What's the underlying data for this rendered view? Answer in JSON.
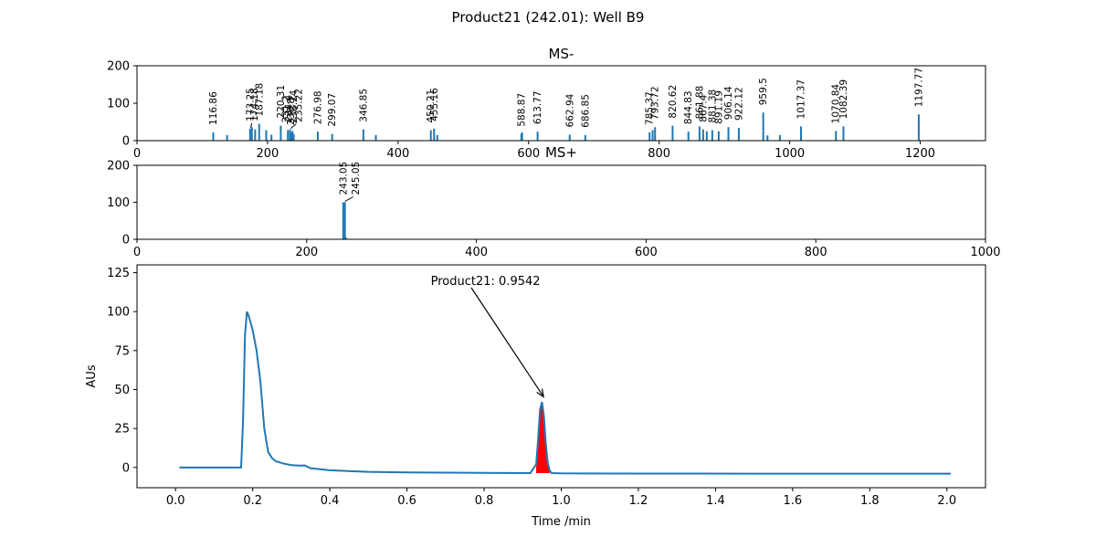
{
  "figure": {
    "title": "Product21 (242.01): Well B9"
  },
  "colors": {
    "bar": "#1f77b4",
    "line": "#1f77b4",
    "peak_fill": "#ff0000",
    "axis": "#000000"
  },
  "chart_data": [
    {
      "id": "ms-neg",
      "type": "bar",
      "title": "MS-",
      "xlim": [
        0,
        1300
      ],
      "ylim": [
        0,
        200
      ],
      "xticks": [
        0,
        200,
        400,
        600,
        800,
        1000,
        1200
      ],
      "yticks": [
        0,
        100,
        200
      ],
      "bars": [
        [
          116.86,
          22
        ],
        [
          138,
          15
        ],
        [
          173.25,
          32
        ],
        [
          176,
          36
        ],
        [
          181,
          30
        ],
        [
          187.18,
          45
        ],
        [
          198,
          28
        ],
        [
          206,
          16
        ],
        [
          220.31,
          40
        ],
        [
          231.2,
          28
        ],
        [
          234.4,
          30
        ],
        [
          236.8,
          22
        ],
        [
          238.2,
          26
        ],
        [
          240,
          18
        ],
        [
          276.98,
          24
        ],
        [
          299.07,
          18
        ],
        [
          346.85,
          30
        ],
        [
          366,
          15
        ],
        [
          450.21,
          28
        ],
        [
          455.16,
          32
        ],
        [
          460,
          15
        ],
        [
          588.87,
          18
        ],
        [
          590,
          22
        ],
        [
          613.77,
          24
        ],
        [
          662.94,
          16
        ],
        [
          686.85,
          15
        ],
        [
          785.37,
          22
        ],
        [
          790,
          28
        ],
        [
          793.72,
          36
        ],
        [
          820.62,
          40
        ],
        [
          844.83,
          24
        ],
        [
          861.88,
          38
        ],
        [
          867.4,
          30
        ],
        [
          873,
          25
        ],
        [
          881.38,
          28
        ],
        [
          891.19,
          25
        ],
        [
          906.14,
          36
        ],
        [
          922.12,
          34
        ],
        [
          959.5,
          75
        ],
        [
          966,
          14
        ],
        [
          985,
          15
        ],
        [
          1017.37,
          38
        ],
        [
          1070.84,
          26
        ],
        [
          1082.39,
          38
        ],
        [
          1197.77,
          70
        ]
      ],
      "labels": [
        [
          "116.86",
          116.86
        ],
        [
          "173.25",
          173.25
        ],
        [
          "174.18",
          180
        ],
        [
          "187.18",
          187.18
        ],
        [
          "220.31",
          220.31
        ],
        [
          "231.2",
          228
        ],
        [
          "234.4",
          232
        ],
        [
          "236.8",
          236
        ],
        [
          "238.24",
          240
        ],
        [
          "235.22",
          248
        ],
        [
          "276.98",
          276.98
        ],
        [
          "299.07",
          299.07
        ],
        [
          "346.85",
          346.85
        ],
        [
          "450.21",
          450.21
        ],
        [
          "455.16",
          455.16
        ],
        [
          "588.87",
          588.87
        ],
        [
          "613.77",
          613.77
        ],
        [
          "662.94",
          662.94
        ],
        [
          "686.85",
          686.85
        ],
        [
          "785.37",
          785.37
        ],
        [
          "793.72",
          793.72
        ],
        [
          "820.62",
          820.62
        ],
        [
          "844.83",
          844.83
        ],
        [
          "861.88",
          861.88
        ],
        [
          "867.4",
          867.4
        ],
        [
          "881.38",
          881.38
        ],
        [
          "891.19",
          891.19
        ],
        [
          "906.14",
          906.14
        ],
        [
          "922.12",
          922.12
        ],
        [
          "959.5",
          959.5
        ],
        [
          "1017.37",
          1017.37
        ],
        [
          "1070.84",
          1070.84
        ],
        [
          "1082.39",
          1082.39
        ],
        [
          "1197.77",
          1197.77
        ]
      ]
    },
    {
      "id": "ms-pos",
      "type": "bar",
      "title": "MS+",
      "xlim": [
        0,
        1000
      ],
      "ylim": [
        0,
        200
      ],
      "xticks": [
        0,
        200,
        400,
        600,
        800,
        1000
      ],
      "yticks": [
        0,
        100,
        200
      ],
      "bars": [
        [
          243.05,
          100
        ],
        [
          245.05,
          100
        ],
        [
          246,
          6
        ]
      ],
      "labels": [
        [
          "243.05",
          243.05
        ],
        [
          "245.05",
          258
        ]
      ]
    },
    {
      "id": "uv-trace",
      "type": "line",
      "xlabel": "Time /min",
      "ylabel": "AUs",
      "xlim": [
        -0.1,
        2.1
      ],
      "ylim": [
        -13,
        130
      ],
      "xticks": [
        0.0,
        0.2,
        0.4,
        0.6,
        0.8,
        1.0,
        1.2,
        1.4,
        1.6,
        1.8,
        2.0
      ],
      "xtick_labels": [
        "0.0",
        "0.2",
        "0.4",
        "0.6",
        "0.8",
        "1.0",
        "1.2",
        "1.4",
        "1.6",
        "1.8",
        "2.0"
      ],
      "yticks": [
        0,
        25,
        50,
        75,
        100,
        125
      ],
      "series": [
        {
          "x": [
            0.01,
            0.17,
            0.175,
            0.18,
            0.185,
            0.19,
            0.2,
            0.21,
            0.22,
            0.23,
            0.24,
            0.25,
            0.26,
            0.28,
            0.3,
            0.32,
            0.335,
            0.35,
            0.4,
            0.5,
            0.6,
            0.8,
            0.92,
            0.935,
            0.94,
            0.945,
            0.95,
            0.955,
            0.96,
            0.965,
            0.97,
            0.975,
            1.0,
            1.2,
            1.5,
            2.01
          ],
          "y": [
            0.0,
            0.0,
            30,
            85,
            100,
            97,
            88,
            75,
            55,
            25,
            10,
            6,
            4,
            2.5,
            1.5,
            1.2,
            1.3,
            -0.5,
            -1.8,
            -2.8,
            -3.2,
            -3.5,
            -3.6,
            2,
            18,
            37,
            42,
            33,
            15,
            3,
            -2,
            -3.6,
            -3.8,
            -3.9,
            -4.0,
            -4.0
          ]
        }
      ],
      "peak_fill_range": [
        0.935,
        0.97
      ],
      "annotation": {
        "text": "Product21: 0.9542",
        "text_x": 0.6,
        "text_y": 120,
        "target_x": 0.9542,
        "target_y": 43
      }
    }
  ]
}
